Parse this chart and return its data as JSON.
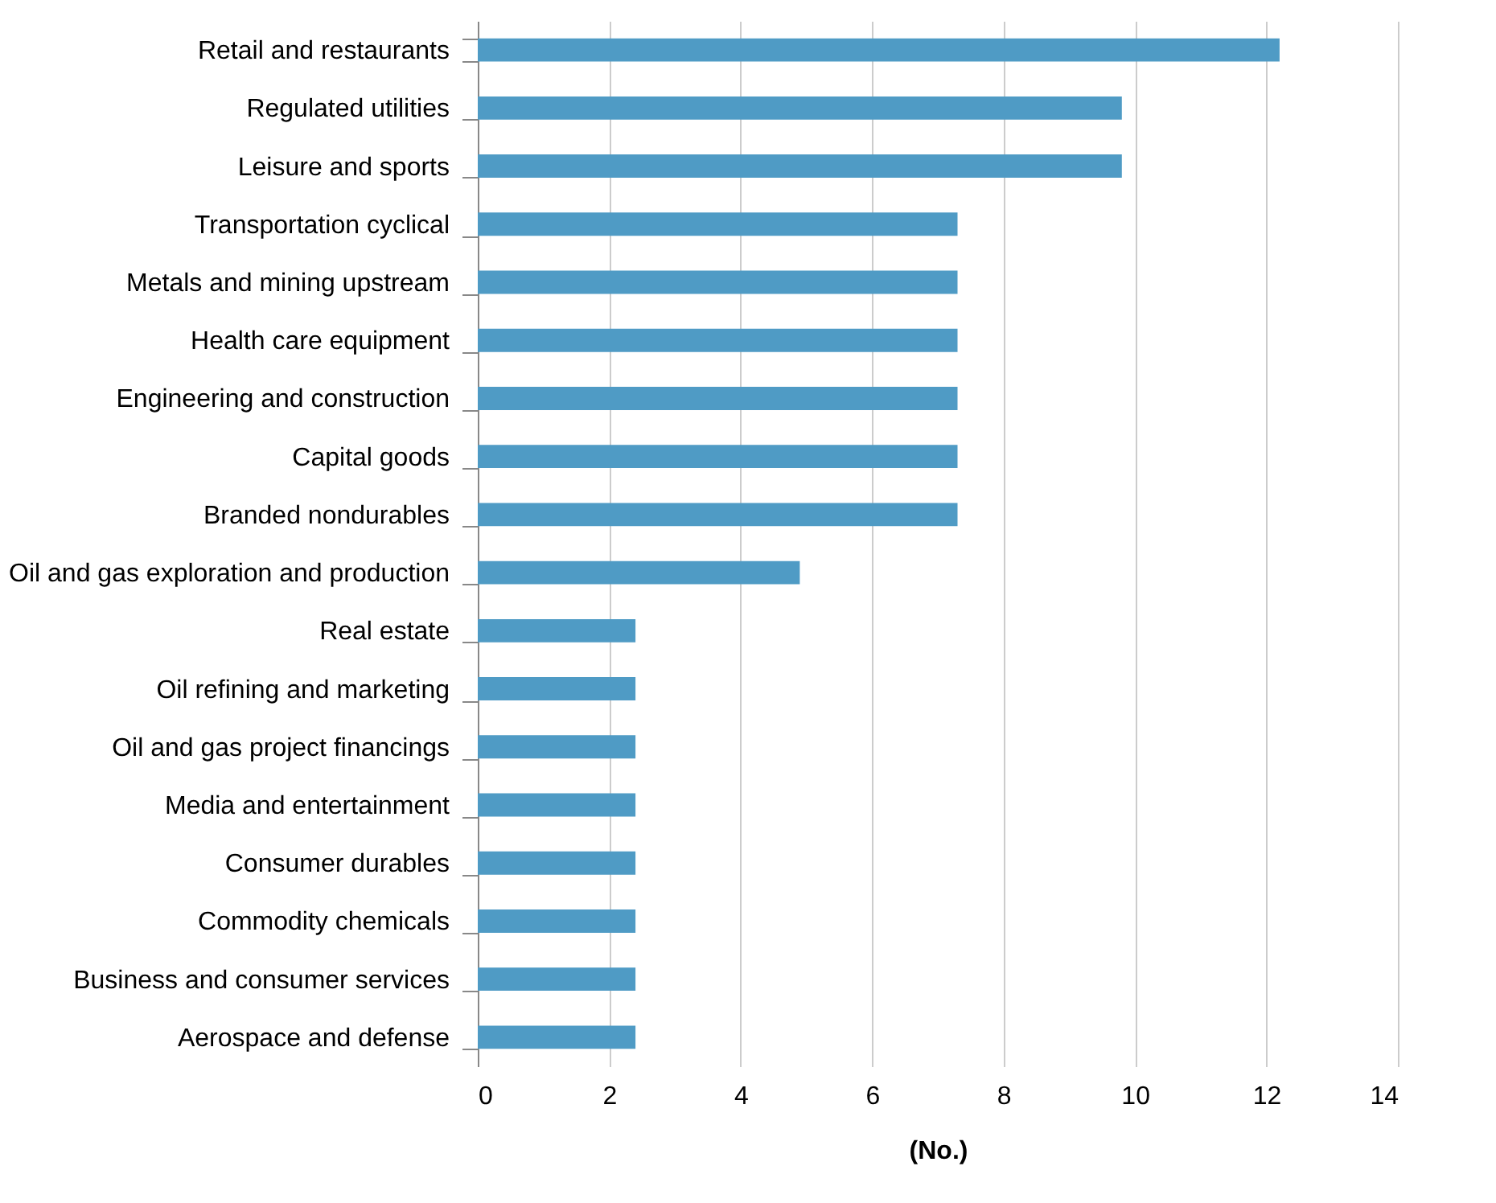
{
  "chart_data": {
    "type": "bar",
    "orientation": "horizontal",
    "xlabel": "(No.)",
    "categories": [
      "Retail and restaurants",
      "Regulated utilities",
      "Leisure and sports",
      "Transportation cyclical",
      "Metals and mining upstream",
      "Health care equipment",
      "Engineering and construction",
      "Capital goods",
      "Branded nondurables",
      "Oil and gas exploration and production",
      "Real estate",
      "Oil refining and marketing",
      "Oil and gas project financings",
      "Media and entertainment",
      "Consumer durables",
      "Commodity chemicals",
      "Business and consumer services",
      "Aerospace and defense"
    ],
    "values": [
      12.2,
      9.8,
      9.8,
      7.3,
      7.3,
      7.3,
      7.3,
      7.3,
      7.3,
      4.9,
      2.4,
      2.4,
      2.4,
      2.4,
      2.4,
      2.4,
      2.4,
      2.4
    ],
    "color": "#4f9bc5",
    "xlim": [
      0,
      14
    ],
    "xticks": [
      0,
      2,
      4,
      6,
      8,
      10,
      12,
      14
    ],
    "grid": "x"
  }
}
